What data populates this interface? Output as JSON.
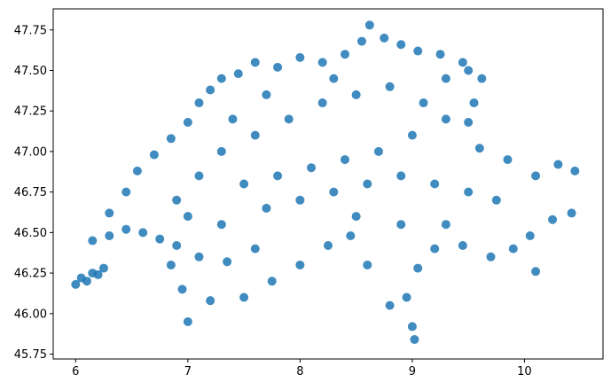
{
  "chart_data": {
    "type": "scatter",
    "title": "",
    "xlabel": "",
    "ylabel": "",
    "xlim": [
      5.8,
      10.7
    ],
    "ylim": [
      45.72,
      47.88
    ],
    "x_ticks": [
      6,
      7,
      8,
      9,
      10
    ],
    "x_tick_labels": [
      "6",
      "7",
      "8",
      "9",
      "10"
    ],
    "y_ticks": [
      45.75,
      46.0,
      46.25,
      46.5,
      46.75,
      47.0,
      47.25,
      47.5,
      47.75
    ],
    "y_tick_labels": [
      "45.75",
      "46.00",
      "46.25",
      "46.50",
      "46.75",
      "47.00",
      "47.25",
      "47.50",
      "47.75"
    ],
    "grid": false,
    "legend": "none",
    "marker_color": "#1f77b4",
    "description": "",
    "series": [
      {
        "name": "",
        "color": "#1f77b4",
        "points": [
          [
            6.0,
            46.18
          ],
          [
            6.05,
            46.22
          ],
          [
            6.1,
            46.2
          ],
          [
            6.15,
            46.25
          ],
          [
            6.2,
            46.24
          ],
          [
            6.25,
            46.28
          ],
          [
            6.15,
            46.45
          ],
          [
            6.3,
            46.48
          ],
          [
            6.45,
            46.52
          ],
          [
            6.6,
            46.5
          ],
          [
            6.75,
            46.46
          ],
          [
            6.9,
            46.42
          ],
          [
            6.3,
            46.62
          ],
          [
            6.45,
            46.75
          ],
          [
            6.55,
            46.88
          ],
          [
            6.7,
            46.98
          ],
          [
            6.85,
            47.08
          ],
          [
            7.0,
            47.18
          ],
          [
            7.1,
            47.3
          ],
          [
            7.2,
            47.38
          ],
          [
            7.3,
            47.45
          ],
          [
            7.45,
            47.48
          ],
          [
            7.6,
            47.55
          ],
          [
            7.8,
            47.52
          ],
          [
            8.0,
            47.58
          ],
          [
            8.2,
            47.55
          ],
          [
            8.4,
            47.6
          ],
          [
            8.55,
            47.68
          ],
          [
            8.62,
            47.78
          ],
          [
            8.75,
            47.7
          ],
          [
            8.9,
            47.66
          ],
          [
            9.05,
            47.62
          ],
          [
            9.25,
            47.6
          ],
          [
            9.45,
            47.55
          ],
          [
            9.62,
            47.45
          ],
          [
            9.55,
            47.3
          ],
          [
            9.5,
            47.18
          ],
          [
            9.6,
            47.02
          ],
          [
            9.85,
            46.95
          ],
          [
            10.1,
            46.85
          ],
          [
            10.3,
            46.92
          ],
          [
            10.45,
            46.88
          ],
          [
            10.42,
            46.62
          ],
          [
            10.25,
            46.58
          ],
          [
            10.05,
            46.48
          ],
          [
            9.9,
            46.4
          ],
          [
            10.1,
            46.26
          ],
          [
            9.7,
            46.35
          ],
          [
            9.45,
            46.42
          ],
          [
            9.2,
            46.4
          ],
          [
            9.05,
            46.28
          ],
          [
            8.95,
            46.1
          ],
          [
            9.0,
            45.92
          ],
          [
            9.02,
            45.84
          ],
          [
            8.8,
            46.05
          ],
          [
            8.6,
            46.3
          ],
          [
            8.45,
            46.48
          ],
          [
            8.25,
            46.42
          ],
          [
            8.0,
            46.3
          ],
          [
            7.75,
            46.2
          ],
          [
            7.5,
            46.1
          ],
          [
            7.2,
            46.08
          ],
          [
            7.0,
            45.95
          ],
          [
            6.95,
            46.15
          ],
          [
            6.85,
            46.3
          ],
          [
            7.1,
            46.35
          ],
          [
            7.35,
            46.32
          ],
          [
            7.6,
            46.4
          ],
          [
            7.3,
            46.55
          ],
          [
            7.0,
            46.6
          ],
          [
            6.9,
            46.7
          ],
          [
            7.1,
            46.85
          ],
          [
            7.3,
            47.0
          ],
          [
            7.6,
            47.1
          ],
          [
            7.9,
            47.2
          ],
          [
            8.2,
            47.3
          ],
          [
            8.5,
            47.35
          ],
          [
            8.8,
            47.4
          ],
          [
            9.1,
            47.3
          ],
          [
            9.3,
            47.2
          ],
          [
            9.0,
            47.1
          ],
          [
            8.7,
            47.0
          ],
          [
            8.4,
            46.95
          ],
          [
            8.1,
            46.9
          ],
          [
            7.8,
            46.85
          ],
          [
            7.5,
            46.8
          ],
          [
            7.7,
            46.65
          ],
          [
            8.0,
            46.7
          ],
          [
            8.3,
            46.75
          ],
          [
            8.6,
            46.8
          ],
          [
            8.9,
            46.85
          ],
          [
            9.2,
            46.8
          ],
          [
            9.5,
            46.75
          ],
          [
            9.75,
            46.7
          ],
          [
            9.3,
            46.55
          ],
          [
            8.9,
            46.55
          ],
          [
            8.5,
            46.6
          ],
          [
            7.4,
            47.2
          ],
          [
            7.7,
            47.35
          ],
          [
            8.3,
            47.45
          ],
          [
            9.3,
            47.45
          ],
          [
            9.5,
            47.5
          ]
        ]
      }
    ]
  }
}
